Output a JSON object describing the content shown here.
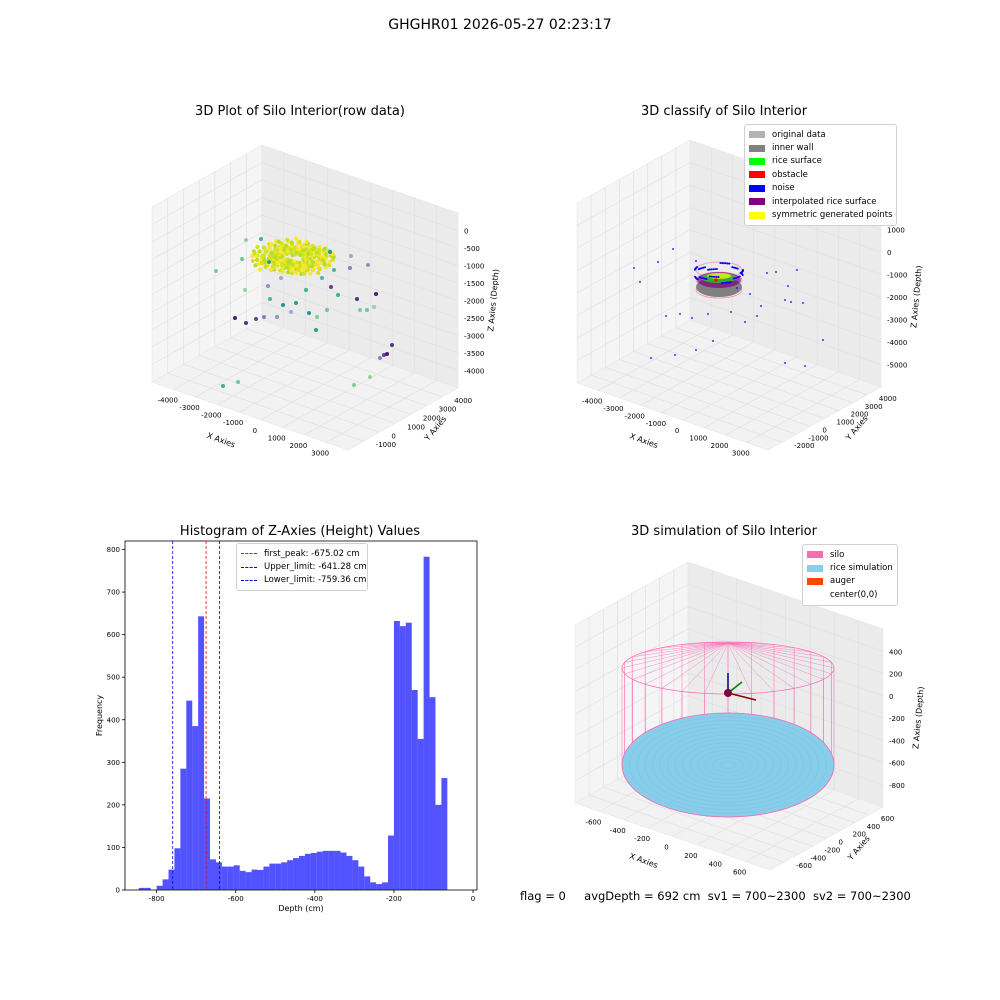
{
  "suptitle": "GHGHR01 2026-05-27 02:23:17",
  "status": {
    "flag": "flag = 0",
    "avg": "avgDepth = 692 cm",
    "sv1": "sv1 = 700~2300",
    "sv2": "sv2 = 700~2300"
  },
  "chart_data": [
    {
      "type": "scatter",
      "title": "3D Plot of Silo Interior(row data)",
      "xlabel": "X Axies",
      "ylabel": "Y Axies",
      "zlabel": "Z Axies (Depth)",
      "x_ticks": [
        "-4000",
        "-3000",
        "-2000",
        "-1000",
        "0",
        "1000",
        "2000",
        "3000"
      ],
      "y_ticks": [
        "-1000",
        "0",
        "1000",
        "2000",
        "3000",
        "4000"
      ],
      "z_ticks": [
        "0",
        "-500",
        "-1000",
        "-1500",
        "-2000",
        "-2500",
        "-3000",
        "-3500",
        "-4000"
      ],
      "colormap": "viridis"
    },
    {
      "type": "scatter",
      "title": "3D classify of Silo Interior",
      "xlabel": "X Axies",
      "ylabel": "Y Axies",
      "zlabel": "Z Axies (Depth)",
      "x_ticks": [
        "-4000",
        "-3000",
        "-2000",
        "-1000",
        "0",
        "1000",
        "2000",
        "3000"
      ],
      "y_ticks": [
        "-2000",
        "-1000",
        "0",
        "1000",
        "2000",
        "3000",
        "4000"
      ],
      "z_ticks": [
        "1000",
        "0",
        "-1000",
        "-2000",
        "-3000",
        "-4000",
        "-5000"
      ],
      "legend": [
        {
          "label": "original data",
          "color": "#b3b3b3"
        },
        {
          "label": "inner wall",
          "color": "#808080"
        },
        {
          "label": "rice surface",
          "color": "#00ff00"
        },
        {
          "label": "obstacle",
          "color": "#ff0000"
        },
        {
          "label": "noise",
          "color": "#0000ff"
        },
        {
          "label": "interpolated rice surface",
          "color": "#800080"
        },
        {
          "label": "symmetric generated points",
          "color": "#ffff00"
        }
      ],
      "legend_position": "top-right"
    },
    {
      "type": "bar",
      "title": "Histogram of Z-Axies (Height) Values",
      "xlabel": "Depth (cm)",
      "ylabel": "Frequency",
      "xlim": [
        -880,
        10
      ],
      "ylim": [
        0,
        820
      ],
      "x_ticks": [
        -800,
        -600,
        -400,
        -200,
        0
      ],
      "y_ticks": [
        0,
        100,
        200,
        300,
        400,
        500,
        600,
        700,
        800
      ],
      "bin_start": -845,
      "bin_width": 15,
      "bar_color": "#0000ff",
      "values": [
        5,
        5,
        0,
        10,
        25,
        48,
        98,
        285,
        445,
        385,
        643,
        215,
        72,
        65,
        55,
        55,
        58,
        45,
        42,
        48,
        47,
        55,
        62,
        62,
        65,
        70,
        75,
        80,
        85,
        87,
        90,
        92,
        92,
        92,
        88,
        80,
        70,
        55,
        32,
        18,
        14,
        18,
        128,
        632,
        620,
        628,
        470,
        355,
        783,
        453,
        200,
        263
      ],
      "vlines": [
        {
          "label": "first_peak: -675.02 cm",
          "x": -675.02,
          "color": "#ff0000"
        },
        {
          "label": "Upper_limit: -641.28 cm",
          "x": -641.28,
          "color": "#0000ff"
        },
        {
          "label": "Lower_limit: -759.36 cm",
          "x": -759.36,
          "color": "#0000ff"
        }
      ],
      "legend_position": "top-center"
    },
    {
      "type": "scatter",
      "title": "3D simulation of Silo Interior",
      "xlabel": "X Axies",
      "ylabel": "Y Axies",
      "zlabel": "Z Axies (Depth)",
      "x_ticks": [
        "-600",
        "-400",
        "-200",
        "0",
        "200",
        "400",
        "600"
      ],
      "y_ticks": [
        "-600",
        "-400",
        "-200",
        "0",
        "200",
        "400",
        "600"
      ],
      "z_ticks": [
        "400",
        "200",
        "0",
        "-200",
        "-400",
        "-600",
        "-800"
      ],
      "legend": [
        {
          "label": "silo",
          "color": "#ff69b4"
        },
        {
          "label": "rice simulation",
          "color": "#87ceeb"
        },
        {
          "label": "auger",
          "color": "#ff4500"
        },
        {
          "label": "center(0,0)",
          "color": "#ffffff"
        }
      ],
      "legend_position": "top-right"
    }
  ]
}
